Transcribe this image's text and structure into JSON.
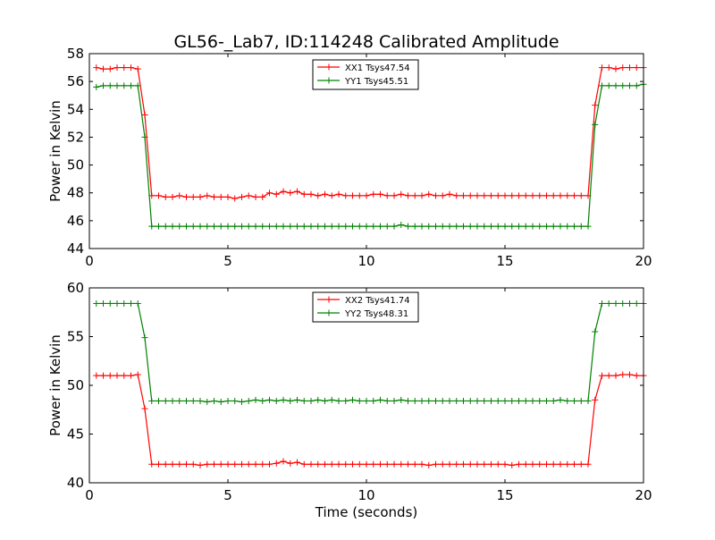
{
  "title": "GL56-_Lab7, ID:114248 Calibrated Amplitude",
  "chart_data": [
    {
      "type": "line",
      "ylabel": "Power in Kelvin",
      "xlabel": "",
      "xlim": [
        0,
        20
      ],
      "ylim": [
        44,
        58
      ],
      "xticks": [
        0,
        5,
        10,
        15,
        20
      ],
      "yticks": [
        44,
        46,
        48,
        50,
        52,
        54,
        56,
        58
      ],
      "legend": "top-center",
      "grid": false,
      "x": [
        0.25,
        0.5,
        0.75,
        1.0,
        1.25,
        1.5,
        1.75,
        2.0,
        2.25,
        2.5,
        2.75,
        3.0,
        3.25,
        3.5,
        3.75,
        4.0,
        4.25,
        4.5,
        4.75,
        5.0,
        5.25,
        5.5,
        5.75,
        6.0,
        6.25,
        6.5,
        6.75,
        7.0,
        7.25,
        7.5,
        7.75,
        8.0,
        8.25,
        8.5,
        8.75,
        9.0,
        9.25,
        9.5,
        9.75,
        10.0,
        10.25,
        10.5,
        10.75,
        11.0,
        11.25,
        11.5,
        11.75,
        12.0,
        12.25,
        12.5,
        12.75,
        13.0,
        13.25,
        13.5,
        13.75,
        14.0,
        14.25,
        14.5,
        14.75,
        15.0,
        15.25,
        15.5,
        15.75,
        16.0,
        16.25,
        16.5,
        16.75,
        17.0,
        17.25,
        17.5,
        17.75,
        18.0,
        18.25,
        18.5,
        18.75,
        19.0,
        19.25,
        19.5,
        19.75,
        20.0
      ],
      "series": [
        {
          "name": "XX1 Tsys47.54",
          "color": "#ff0000",
          "values": [
            57.0,
            56.9,
            56.9,
            57.0,
            57.0,
            57.0,
            56.9,
            53.6,
            47.8,
            47.8,
            47.7,
            47.7,
            47.8,
            47.7,
            47.7,
            47.7,
            47.8,
            47.7,
            47.7,
            47.7,
            47.6,
            47.7,
            47.8,
            47.7,
            47.7,
            48.0,
            47.9,
            48.1,
            48.0,
            48.1,
            47.9,
            47.9,
            47.8,
            47.9,
            47.8,
            47.9,
            47.8,
            47.8,
            47.8,
            47.8,
            47.9,
            47.9,
            47.8,
            47.8,
            47.9,
            47.8,
            47.8,
            47.8,
            47.9,
            47.8,
            47.8,
            47.9,
            47.8,
            47.8,
            47.8,
            47.8,
            47.8,
            47.8,
            47.8,
            47.8,
            47.8,
            47.8,
            47.8,
            47.8,
            47.8,
            47.8,
            47.8,
            47.8,
            47.8,
            47.8,
            47.8,
            47.8,
            54.3,
            57.0,
            57.0,
            56.9,
            57.0,
            57.0,
            57.0,
            57.0
          ]
        },
        {
          "name": "YY1 Tsys45.51",
          "color": "#008000",
          "values": [
            55.6,
            55.7,
            55.7,
            55.7,
            55.7,
            55.7,
            55.7,
            52.0,
            45.6,
            45.6,
            45.6,
            45.6,
            45.6,
            45.6,
            45.6,
            45.6,
            45.6,
            45.6,
            45.6,
            45.6,
            45.6,
            45.6,
            45.6,
            45.6,
            45.6,
            45.6,
            45.6,
            45.6,
            45.6,
            45.6,
            45.6,
            45.6,
            45.6,
            45.6,
            45.6,
            45.6,
            45.6,
            45.6,
            45.6,
            45.6,
            45.6,
            45.6,
            45.6,
            45.6,
            45.7,
            45.6,
            45.6,
            45.6,
            45.6,
            45.6,
            45.6,
            45.6,
            45.6,
            45.6,
            45.6,
            45.6,
            45.6,
            45.6,
            45.6,
            45.6,
            45.6,
            45.6,
            45.6,
            45.6,
            45.6,
            45.6,
            45.6,
            45.6,
            45.6,
            45.6,
            45.6,
            45.6,
            52.9,
            55.7,
            55.7,
            55.7,
            55.7,
            55.7,
            55.7,
            55.8
          ]
        }
      ]
    },
    {
      "type": "line",
      "ylabel": "Power in Kelvin",
      "xlabel": "Time (seconds)",
      "xlim": [
        0,
        20
      ],
      "ylim": [
        40,
        60
      ],
      "xticks": [
        0,
        5,
        10,
        15,
        20
      ],
      "yticks": [
        40,
        45,
        50,
        55,
        60
      ],
      "legend": "top-center",
      "grid": false,
      "x": [
        0.25,
        0.5,
        0.75,
        1.0,
        1.25,
        1.5,
        1.75,
        2.0,
        2.25,
        2.5,
        2.75,
        3.0,
        3.25,
        3.5,
        3.75,
        4.0,
        4.25,
        4.5,
        4.75,
        5.0,
        5.25,
        5.5,
        5.75,
        6.0,
        6.25,
        6.5,
        6.75,
        7.0,
        7.25,
        7.5,
        7.75,
        8.0,
        8.25,
        8.5,
        8.75,
        9.0,
        9.25,
        9.5,
        9.75,
        10.0,
        10.25,
        10.5,
        10.75,
        11.0,
        11.25,
        11.5,
        11.75,
        12.0,
        12.25,
        12.5,
        12.75,
        13.0,
        13.25,
        13.5,
        13.75,
        14.0,
        14.25,
        14.5,
        14.75,
        15.0,
        15.25,
        15.5,
        15.75,
        16.0,
        16.25,
        16.5,
        16.75,
        17.0,
        17.25,
        17.5,
        17.75,
        18.0,
        18.25,
        18.5,
        18.75,
        19.0,
        19.25,
        19.5,
        19.75,
        20.0
      ],
      "series": [
        {
          "name": "XX2 Tsys41.74",
          "color": "#ff0000",
          "values": [
            51.0,
            51.0,
            51.0,
            51.0,
            51.0,
            51.0,
            51.1,
            47.6,
            41.9,
            41.9,
            41.9,
            41.9,
            41.9,
            41.9,
            41.9,
            41.8,
            41.9,
            41.9,
            41.9,
            41.9,
            41.9,
            41.9,
            41.9,
            41.9,
            41.9,
            41.9,
            42.0,
            42.2,
            42.0,
            42.1,
            41.9,
            41.9,
            41.9,
            41.9,
            41.9,
            41.9,
            41.9,
            41.9,
            41.9,
            41.9,
            41.9,
            41.9,
            41.9,
            41.9,
            41.9,
            41.9,
            41.9,
            41.9,
            41.8,
            41.9,
            41.9,
            41.9,
            41.9,
            41.9,
            41.9,
            41.9,
            41.9,
            41.9,
            41.9,
            41.9,
            41.8,
            41.9,
            41.9,
            41.9,
            41.9,
            41.9,
            41.9,
            41.9,
            41.9,
            41.9,
            41.9,
            41.9,
            48.5,
            51.0,
            51.0,
            51.0,
            51.1,
            51.1,
            51.0,
            51.0
          ]
        },
        {
          "name": "YY2 Tsys48.31",
          "color": "#008000",
          "values": [
            58.4,
            58.4,
            58.4,
            58.4,
            58.4,
            58.4,
            58.4,
            54.9,
            48.4,
            48.4,
            48.4,
            48.4,
            48.4,
            48.4,
            48.4,
            48.4,
            48.3,
            48.4,
            48.3,
            48.4,
            48.4,
            48.3,
            48.4,
            48.5,
            48.4,
            48.5,
            48.4,
            48.5,
            48.4,
            48.5,
            48.4,
            48.4,
            48.5,
            48.4,
            48.5,
            48.4,
            48.4,
            48.5,
            48.4,
            48.4,
            48.4,
            48.5,
            48.4,
            48.4,
            48.5,
            48.4,
            48.4,
            48.4,
            48.4,
            48.4,
            48.4,
            48.4,
            48.4,
            48.4,
            48.4,
            48.4,
            48.4,
            48.4,
            48.4,
            48.4,
            48.4,
            48.4,
            48.4,
            48.4,
            48.4,
            48.4,
            48.4,
            48.5,
            48.4,
            48.4,
            48.4,
            48.4,
            55.5,
            58.4,
            58.4,
            58.4,
            58.4,
            58.4,
            58.4,
            58.4
          ]
        }
      ]
    }
  ]
}
